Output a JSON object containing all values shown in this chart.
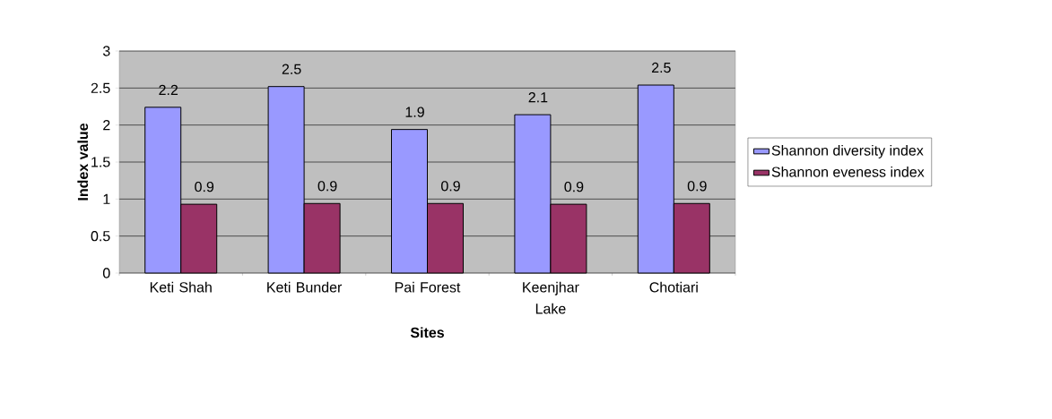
{
  "chart_data": {
    "type": "bar",
    "xlabel": "Sites",
    "ylabel": "Index value",
    "categories": [
      "Keti Shah",
      "Keti Bunder",
      "Pai Forest",
      "Keenjhar Lake",
      "Chotiari"
    ],
    "series": [
      {
        "name": "Shannon diversity index",
        "color": "#9999ff",
        "values": [
          2.24,
          2.52,
          1.94,
          2.14,
          2.54
        ],
        "value_labels": [
          "2.2",
          "2.5",
          "1.9",
          "2.1",
          "2.5"
        ]
      },
      {
        "name": "Shannon eveness index",
        "color": "#993366",
        "values": [
          0.93,
          0.94,
          0.94,
          0.93,
          0.94
        ],
        "value_labels": [
          "0.9",
          "0.9",
          "0.9",
          "0.9",
          "0.9"
        ]
      }
    ],
    "ylim": [
      0,
      3
    ],
    "yticks": [
      0,
      0.5,
      1,
      1.5,
      2,
      2.5,
      3
    ],
    "grid": "y",
    "legend": "right"
  }
}
